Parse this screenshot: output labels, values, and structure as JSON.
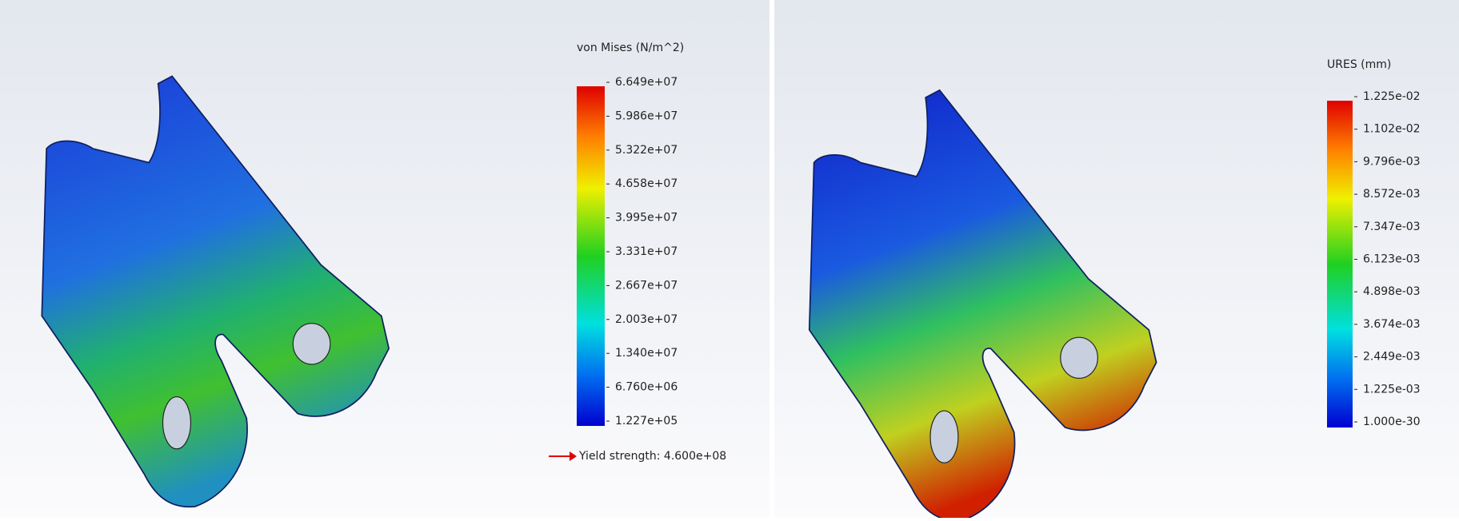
{
  "panels": [
    {
      "legend": {
        "title": "von Mises (N/m^2)",
        "labels": [
          "6.649e+07",
          "5.986e+07",
          "5.322e+07",
          "4.658e+07",
          "3.995e+07",
          "3.331e+07",
          "2.667e+07",
          "2.003e+07",
          "1.340e+07",
          "6.760e+06",
          "1.227e+05"
        ]
      },
      "note": "Yield strength: 4.600e+08"
    },
    {
      "legend": {
        "title": "URES (mm)",
        "labels": [
          "1.225e-02",
          "1.102e-02",
          "9.796e-03",
          "8.572e-03",
          "7.347e-03",
          "6.123e-03",
          "4.898e-03",
          "3.674e-03",
          "2.449e-03",
          "1.225e-03",
          "1.000e-30"
        ]
      }
    }
  ]
}
